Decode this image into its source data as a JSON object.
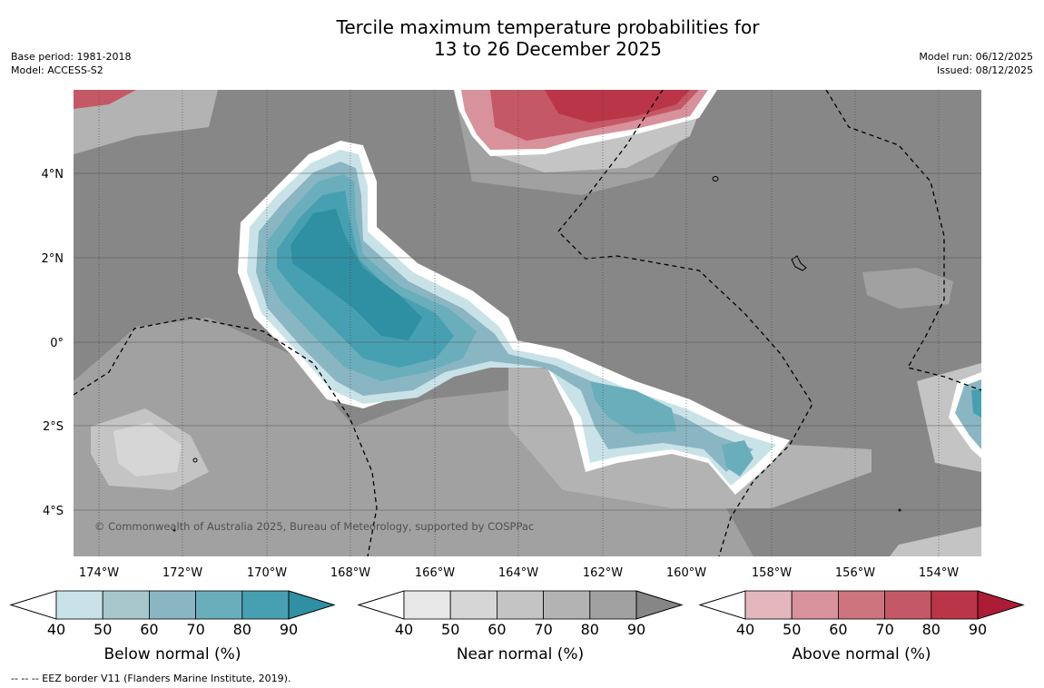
{
  "title_line1": "Tercile maximum temperature probabilities for",
  "title_line2": "13 to 26 December 2025",
  "meta_left": [
    "Base period: 1981-2018",
    "Model: ACCESS-S2"
  ],
  "meta_right": [
    "Model run: 06/12/2025",
    "Issued: 08/12/2025"
  ],
  "lat_labels": [
    "4°N",
    "2°N",
    "0°",
    "2°S",
    "4°S"
  ],
  "lon_labels": [
    "174°W",
    "172°W",
    "170°W",
    "168°W",
    "166°W",
    "164°W",
    "162°W",
    "160°W",
    "158°W",
    "156°W",
    "154°W"
  ],
  "copyright": "© Commonwealth of Australia 2025, Bureau of Meteorology, supported by COSPPac",
  "colorbars": [
    {
      "label": "Below normal (%)",
      "ticks": [
        "40",
        "50",
        "60",
        "70",
        "80",
        "90"
      ],
      "colors": [
        "#c9e2e8",
        "#a7c7cd",
        "#8ab6c3",
        "#6aaebc",
        "#47a0b1",
        "#2f8fa3"
      ]
    },
    {
      "label": "Near normal (%)",
      "ticks": [
        "40",
        "50",
        "60",
        "70",
        "80",
        "90"
      ],
      "colors": [
        "#e7e7e7",
        "#d6d6d6",
        "#c4c4c4",
        "#b3b3b3",
        "#a1a1a1",
        "#868686"
      ]
    },
    {
      "label": "Above normal (%)",
      "ticks": [
        "40",
        "50",
        "60",
        "70",
        "80",
        "90"
      ],
      "colors": [
        "#e3b7bd",
        "#d7929b",
        "#cd747e",
        "#c55866",
        "#b93547",
        "#ad1c37"
      ]
    }
  ],
  "footer": "-- -- -- EEZ border V11 (Flanders Marine Institute, 2019)."
}
